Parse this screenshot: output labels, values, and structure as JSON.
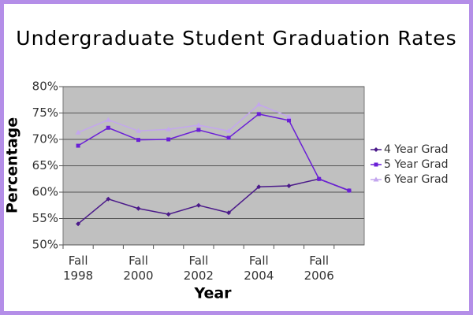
{
  "chart_data": {
    "type": "line",
    "title": "Undergraduate Student Graduation Rates",
    "x_label": "Year",
    "y_label": "Percentage",
    "categories": [
      "Fall 1998",
      null,
      "Fall 2000",
      null,
      "Fall 2002",
      null,
      "Fall 2004",
      null,
      "Fall 2006",
      null
    ],
    "series": [
      {
        "name": "4 Year Grad",
        "color": "#4b1a8a",
        "values": [
          54.0,
          58.7,
          56.9,
          55.8,
          57.5,
          56.1,
          61.0,
          61.2,
          62.5,
          60.3
        ]
      },
      {
        "name": "5 Year Grad",
        "color": "#6a1fd6",
        "values": [
          68.8,
          72.2,
          69.9,
          70.0,
          71.8,
          70.3,
          74.8,
          73.6,
          62.5,
          60.3
        ]
      },
      {
        "name": "6 Year Grad",
        "color": "#c3a6ee",
        "values": [
          71.3,
          73.7,
          71.6,
          71.9,
          72.7,
          71.6,
          76.6,
          74.3,
          null,
          null
        ]
      }
    ],
    "ylim": [
      50,
      80
    ],
    "yticks": [
      {
        "value": 50,
        "label": "50%"
      },
      {
        "value": 55,
        "label": "55%"
      },
      {
        "value": 60,
        "label": "60%"
      },
      {
        "value": 65,
        "label": "65%"
      },
      {
        "value": 70,
        "label": "70%"
      },
      {
        "value": 75,
        "label": "75%"
      },
      {
        "value": 80,
        "label": "80%"
      }
    ],
    "grid": true,
    "legend": "right"
  }
}
